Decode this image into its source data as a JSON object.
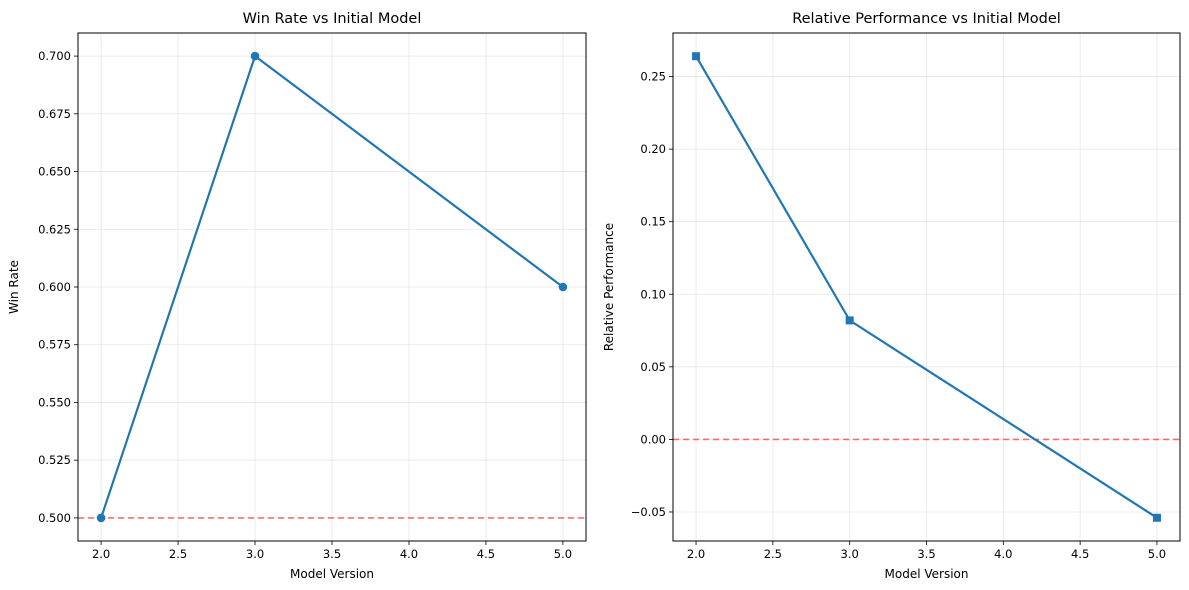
{
  "colors": {
    "series": "#1f77b4",
    "reference": "#ff0000",
    "grid": "#b0b0b0",
    "axes": "#000000"
  },
  "chart_data": [
    {
      "type": "line",
      "title": "Win Rate vs Initial Model",
      "xlabel": "Model Version",
      "ylabel": "Win Rate",
      "marker": "circle",
      "x": [
        2.0,
        3.0,
        5.0
      ],
      "series": [
        {
          "values": [
            0.5,
            0.7,
            0.6
          ]
        }
      ],
      "reference_line": {
        "y": 0.5,
        "style": "dashed"
      },
      "xlim": [
        1.85,
        5.15
      ],
      "ylim": [
        0.49,
        0.71
      ],
      "xticks": [
        2.0,
        2.5,
        3.0,
        3.5,
        4.0,
        4.5,
        5.0
      ],
      "xtick_labels": [
        "2.0",
        "2.5",
        "3.0",
        "3.5",
        "4.0",
        "4.5",
        "5.0"
      ],
      "yticks": [
        0.5,
        0.525,
        0.55,
        0.575,
        0.6,
        0.625,
        0.65,
        0.675,
        0.7
      ],
      "ytick_labels": [
        "0.500",
        "0.525",
        "0.550",
        "0.575",
        "0.600",
        "0.625",
        "0.650",
        "0.675",
        "0.700"
      ],
      "grid": true
    },
    {
      "type": "line",
      "title": "Relative Performance vs Initial Model",
      "xlabel": "Model Version",
      "ylabel": "Relative Performance",
      "marker": "square",
      "x": [
        2.0,
        3.0,
        5.0
      ],
      "series": [
        {
          "values": [
            0.264,
            0.082,
            -0.054
          ]
        }
      ],
      "reference_line": {
        "y": 0.0,
        "style": "dashed"
      },
      "xlim": [
        1.85,
        5.15
      ],
      "ylim": [
        -0.07,
        0.28
      ],
      "xticks": [
        2.0,
        2.5,
        3.0,
        3.5,
        4.0,
        4.5,
        5.0
      ],
      "xtick_labels": [
        "2.0",
        "2.5",
        "3.0",
        "3.5",
        "4.0",
        "4.5",
        "5.0"
      ],
      "yticks": [
        -0.05,
        0.0,
        0.05,
        0.1,
        0.15,
        0.2,
        0.25
      ],
      "ytick_labels": [
        "−0.05",
        "0.00",
        "0.05",
        "0.10",
        "0.15",
        "0.20",
        "0.25"
      ],
      "grid": true
    }
  ]
}
